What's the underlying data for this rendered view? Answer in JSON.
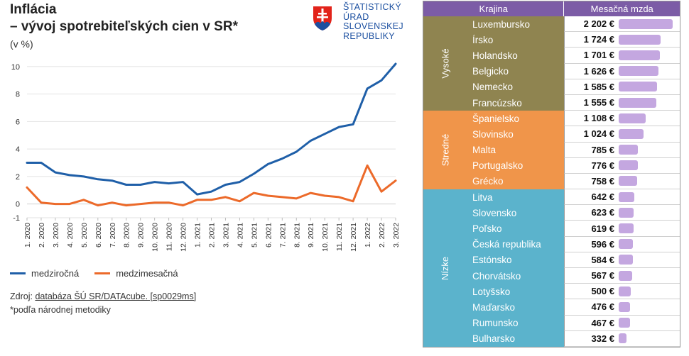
{
  "header": {
    "title_line1": "Inflácia",
    "title_line2": "– vývoj spotrebiteľských cien v SR*",
    "unit": "(v %)"
  },
  "logo": {
    "lines": [
      "ŠTATISTICKÝ",
      "ÚRAD",
      "SLOVENSKEJ",
      "REPUBLIKY"
    ]
  },
  "colors": {
    "series_yoy": "#1f5fa8",
    "series_mom": "#ec6a2a",
    "header_bg": "#7c5ca6",
    "group_high": "#8f8450",
    "group_mid": "#f0954a",
    "group_low": "#5bb3cc",
    "bar": "#c4a7e0"
  },
  "chart_data": {
    "type": "line",
    "title": "Inflácia – vývoj spotrebiteľských cien v SR*",
    "ylabel": "(v %)",
    "ylim": [
      -1,
      10.2
    ],
    "yticks": [
      -1,
      0,
      2,
      4,
      6,
      8,
      10
    ],
    "grid": true,
    "legend_position": "bottom-left",
    "categories": [
      "1. 2020",
      "2. 2020",
      "3. 2020",
      "4. 2020",
      "5. 2020",
      "6. 2020",
      "7. 2020",
      "8. 2020",
      "9. 2020",
      "10. 2020",
      "11. 2020",
      "12. 2020",
      "1. 2021",
      "2. 2021",
      "3. 2021",
      "4. 2021",
      "5. 2021",
      "6. 2021",
      "7. 2021",
      "8. 2021",
      "9. 2021",
      "10. 2021",
      "11. 2021",
      "12. 2021",
      "1. 2022",
      "2. 2022",
      "3. 2022"
    ],
    "series": [
      {
        "name": "medziročná",
        "values": [
          3.0,
          3.0,
          2.3,
          2.1,
          2.0,
          1.8,
          1.7,
          1.4,
          1.4,
          1.6,
          1.5,
          1.6,
          0.7,
          0.9,
          1.4,
          1.6,
          2.2,
          2.9,
          3.3,
          3.8,
          4.6,
          5.1,
          5.6,
          5.8,
          8.4,
          9.0,
          10.2
        ]
      },
      {
        "name": "medzimesačná",
        "values": [
          1.2,
          0.1,
          0.0,
          0.0,
          0.3,
          -0.1,
          0.1,
          -0.1,
          0.0,
          0.1,
          0.1,
          -0.1,
          0.3,
          0.3,
          0.5,
          0.2,
          0.8,
          0.6,
          0.5,
          0.4,
          0.8,
          0.6,
          0.5,
          0.2,
          2.8,
          0.9,
          1.7
        ]
      }
    ]
  },
  "footer": {
    "legend_yoy": "medziročná",
    "legend_mom": "medzimesačná",
    "source_prefix": "Zdroj: ",
    "source_link": "databáza ŠÚ SR/DATAcube. [sp0029ms]",
    "note": "*podľa národnej metodiky"
  },
  "table": {
    "col_country": "Krajina",
    "col_wage": "Mesačná mzda",
    "max_wage": 2202,
    "groups": [
      {
        "label": "Vysoké",
        "color_key": "group_high",
        "rows": [
          {
            "country": "Luxembursko",
            "wage": "2 202 €",
            "value": 2202
          },
          {
            "country": "Írsko",
            "wage": "1 724 €",
            "value": 1724
          },
          {
            "country": "Holandsko",
            "wage": "1 701 €",
            "value": 1701
          },
          {
            "country": "Belgicko",
            "wage": "1 626 €",
            "value": 1626
          },
          {
            "country": "Nemecko",
            "wage": "1 585 €",
            "value": 1585
          },
          {
            "country": "Francúzsko",
            "wage": "1 555 €",
            "value": 1555
          }
        ]
      },
      {
        "label": "Stredné",
        "color_key": "group_mid",
        "rows": [
          {
            "country": "Španielsko",
            "wage": "1 108 €",
            "value": 1108
          },
          {
            "country": "Slovinsko",
            "wage": "1 024 €",
            "value": 1024
          },
          {
            "country": "Malta",
            "wage": "785 €",
            "value": 785
          },
          {
            "country": "Portugalsko",
            "wage": "776 €",
            "value": 776
          },
          {
            "country": "Grécko",
            "wage": "758 €",
            "value": 758
          }
        ]
      },
      {
        "label": "Nízke",
        "color_key": "group_low",
        "rows": [
          {
            "country": "Litva",
            "wage": "642 €",
            "value": 642
          },
          {
            "country": "Slovensko",
            "wage": "623 €",
            "value": 623
          },
          {
            "country": "Poľsko",
            "wage": "619 €",
            "value": 619
          },
          {
            "country": "Česká republika",
            "wage": "596 €",
            "value": 596
          },
          {
            "country": "Estónsko",
            "wage": "584 €",
            "value": 584
          },
          {
            "country": "Chorvátsko",
            "wage": "567 €",
            "value": 567
          },
          {
            "country": "Lotyšsko",
            "wage": "500 €",
            "value": 500
          },
          {
            "country": "Maďarsko",
            "wage": "476 €",
            "value": 476
          },
          {
            "country": "Rumunsko",
            "wage": "467 €",
            "value": 467
          },
          {
            "country": "Bulharsko",
            "wage": "332 €",
            "value": 332
          }
        ]
      }
    ]
  }
}
